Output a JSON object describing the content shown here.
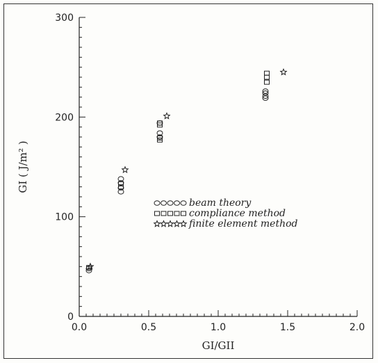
{
  "chart_data": {
    "type": "scatter",
    "xlabel": "GI/GII",
    "ylabel": "GI ( J/m² )",
    "xlim": [
      0.0,
      2.0
    ],
    "ylim": [
      0,
      300
    ],
    "x_ticks": [
      "0.0",
      "0.5",
      "1.0",
      "1.5",
      "2.0"
    ],
    "y_ticks": [
      "0",
      "100",
      "200",
      "300"
    ],
    "grid": false,
    "legend_position": "center-right",
    "series": [
      {
        "name": "beam theory",
        "marker": "circle",
        "legend_glyphs": "○○○○○",
        "points": [
          [
            0.07,
            46
          ],
          [
            0.07,
            48
          ],
          [
            0.3,
            125
          ],
          [
            0.3,
            129
          ],
          [
            0.3,
            134
          ],
          [
            0.3,
            138
          ],
          [
            0.58,
            180
          ],
          [
            0.58,
            184
          ],
          [
            0.58,
            194
          ],
          [
            1.34,
            219
          ],
          [
            1.34,
            221
          ],
          [
            1.34,
            224
          ],
          [
            1.34,
            226
          ]
        ]
      },
      {
        "name": "compliance method",
        "marker": "square",
        "legend_glyphs": "□□□□□",
        "points": [
          [
            0.07,
            49
          ],
          [
            0.3,
            130
          ],
          [
            0.3,
            133
          ],
          [
            0.58,
            177
          ],
          [
            0.58,
            179
          ],
          [
            0.58,
            192
          ],
          [
            0.58,
            194
          ],
          [
            1.35,
            235
          ],
          [
            1.35,
            240
          ],
          [
            1.35,
            244
          ]
        ]
      },
      {
        "name": "finite element method",
        "marker": "star",
        "legend_glyphs": "☆☆☆☆☆",
        "points": [
          [
            0.08,
            50
          ],
          [
            0.33,
            147
          ],
          [
            0.63,
            201
          ],
          [
            1.47,
            245
          ]
        ]
      }
    ]
  }
}
